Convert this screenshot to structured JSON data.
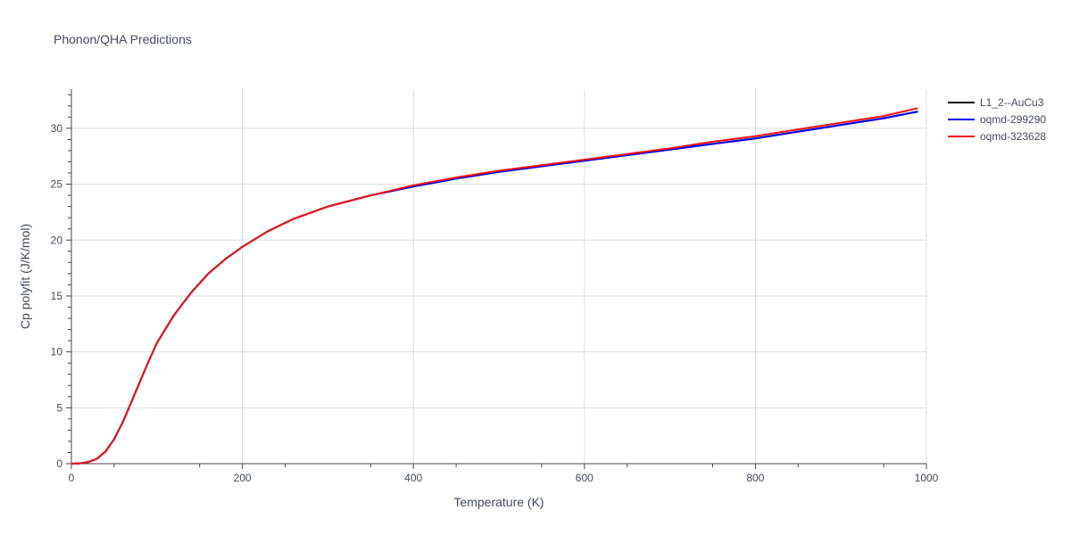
{
  "chart_data": {
    "type": "line",
    "title": "Phonon/QHA Predictions",
    "xlabel": "Temperature (K)",
    "ylabel": "Cp polyfit (J/K/mol)",
    "xlim": [
      0,
      1000
    ],
    "ylim": [
      0,
      33.5
    ],
    "xticks": [
      "0",
      "200",
      "400",
      "600",
      "800",
      "1000"
    ],
    "yticks": [
      "0",
      "5",
      "10",
      "15",
      "20",
      "25",
      "30"
    ],
    "grid": true,
    "legend_position": "top-right",
    "series": [
      {
        "name": "L1_2--AuCu3",
        "color": "#000000",
        "x": [
          0,
          10,
          20,
          30,
          40,
          50,
          60,
          70,
          80,
          90,
          100,
          120,
          140,
          160,
          180,
          200,
          230,
          260,
          300,
          350,
          400,
          450,
          500,
          550,
          600,
          650,
          700,
          750,
          800,
          850,
          900,
          950,
          990
        ],
        "y": [
          0,
          0.03,
          0.15,
          0.45,
          1.1,
          2.2,
          3.7,
          5.5,
          7.3,
          9.1,
          10.8,
          13.3,
          15.3,
          17.0,
          18.3,
          19.4,
          20.8,
          21.9,
          23.0,
          24.0,
          24.8,
          25.5,
          26.1,
          26.6,
          27.1,
          27.6,
          28.1,
          28.6,
          29.1,
          29.7,
          30.3,
          30.9,
          31.5
        ]
      },
      {
        "name": "oqmd-299290",
        "color": "#0000ee",
        "x": [
          0,
          10,
          20,
          30,
          40,
          50,
          60,
          70,
          80,
          90,
          100,
          120,
          140,
          160,
          180,
          200,
          230,
          260,
          300,
          350,
          400,
          450,
          500,
          550,
          600,
          650,
          700,
          750,
          800,
          850,
          900,
          950,
          990
        ],
        "y": [
          0,
          0.03,
          0.15,
          0.45,
          1.1,
          2.2,
          3.7,
          5.5,
          7.3,
          9.1,
          10.8,
          13.3,
          15.3,
          17.0,
          18.3,
          19.4,
          20.8,
          21.9,
          23.0,
          24.0,
          24.8,
          25.5,
          26.1,
          26.6,
          27.1,
          27.6,
          28.1,
          28.6,
          29.1,
          29.7,
          30.3,
          30.9,
          31.5
        ]
      },
      {
        "name": "oqmd-323628",
        "color": "#ee1111",
        "x": [
          0,
          10,
          20,
          30,
          40,
          50,
          60,
          70,
          80,
          90,
          100,
          120,
          140,
          160,
          180,
          200,
          230,
          260,
          300,
          350,
          400,
          450,
          500,
          550,
          600,
          650,
          700,
          750,
          800,
          850,
          900,
          950,
          990
        ],
        "y": [
          0,
          0.03,
          0.15,
          0.45,
          1.1,
          2.2,
          3.7,
          5.5,
          7.3,
          9.1,
          10.8,
          13.3,
          15.3,
          17.0,
          18.3,
          19.4,
          20.8,
          21.9,
          23.0,
          24.0,
          24.9,
          25.6,
          26.2,
          26.7,
          27.2,
          27.7,
          28.2,
          28.8,
          29.3,
          29.9,
          30.5,
          31.1,
          31.8
        ]
      }
    ]
  }
}
